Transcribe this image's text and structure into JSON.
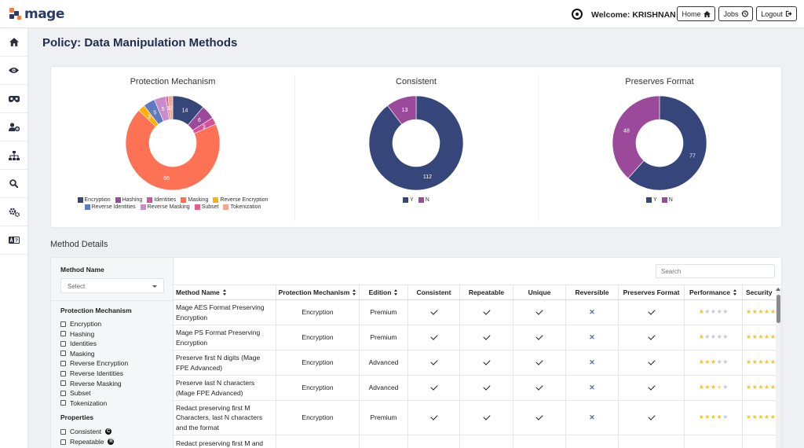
{
  "header": {
    "logo_text": "mage",
    "welcome": "Welcome: KRISHNAN",
    "buttons": [
      {
        "label": "Home",
        "icon": "home-icon"
      },
      {
        "label": "Jobs",
        "icon": "history-icon"
      },
      {
        "label": "Logout",
        "icon": "logout-icon"
      }
    ]
  },
  "sidebar": {
    "items": [
      {
        "icon": "home-icon"
      },
      {
        "icon": "eye-icon"
      },
      {
        "icon": "mask-icon"
      },
      {
        "icon": "user-gear-icon"
      },
      {
        "icon": "sitemap-icon"
      },
      {
        "icon": "search-icon"
      },
      {
        "icon": "gears-icon"
      },
      {
        "icon": "language-icon"
      }
    ]
  },
  "page": {
    "title": "Policy: Data Manipulation Methods",
    "section_title": "Method Details"
  },
  "chart_data": [
    {
      "type": "pie",
      "title": "Protection Mechanism",
      "categories": [
        "Encryption",
        "Hashing",
        "Identities",
        "Masking",
        "Reverse Encryption",
        "Reverse Identities",
        "Reverse Masking",
        "Subset",
        "Tokenization"
      ],
      "values": [
        14,
        6,
        3,
        86,
        3,
        5,
        5,
        1,
        2
      ],
      "data_labels": [
        "14",
        "6",
        "3",
        "86",
        "3",
        "5",
        "5",
        "1",
        "2"
      ],
      "colors": [
        "#36467a",
        "#9b4a9b",
        "#d84e9a",
        "#fd7255",
        "#ffb300",
        "#5d7ac2",
        "#c98bc9",
        "#e85d8c",
        "#f4a68f"
      ],
      "legend": "bottom"
    },
    {
      "type": "pie",
      "title": "Consistent",
      "categories": [
        "Y",
        "N"
      ],
      "values": [
        112,
        13
      ],
      "colors": [
        "#36467a",
        "#9b4a9b"
      ],
      "legend": "bottom"
    },
    {
      "type": "pie",
      "title": "Preserves Format",
      "categories": [
        "Y",
        "N"
      ],
      "values": [
        77,
        48
      ],
      "colors": [
        "#36467a",
        "#9b4a9b"
      ],
      "legend": "bottom"
    }
  ],
  "filters": {
    "method_name_label": "Method Name",
    "select_placeholder": "Select",
    "protection_label": "Protection Mechanism",
    "protection_options": [
      "Encryption",
      "Hashing",
      "Identities",
      "Masking",
      "Reverse Encryption",
      "Reverse Identities",
      "Reverse Masking",
      "Subset",
      "Tokenization"
    ],
    "properties_label": "Properties",
    "property_options": [
      {
        "label": "Consistent",
        "badge": "C"
      },
      {
        "label": "Repeatable",
        "badge": "R"
      }
    ]
  },
  "table": {
    "search_placeholder": "Search",
    "columns": [
      "Method Name",
      "Protection Mechanism",
      "Edition",
      "Consistent",
      "Repeatable",
      "Unique",
      "Reversible",
      "Preserves Format",
      "Performance",
      "Security"
    ],
    "rows": [
      {
        "name": "Mage AES Format Preserving Encryption",
        "mechanism": "Encryption",
        "edition": "Premium",
        "consistent": true,
        "repeatable": true,
        "unique": true,
        "reversible": false,
        "preserves_format": true,
        "performance": 1,
        "security": 5
      },
      {
        "name": "Mage PS Format Preserving Encryption",
        "mechanism": "Encryption",
        "edition": "Premium",
        "consistent": true,
        "repeatable": true,
        "unique": true,
        "reversible": false,
        "preserves_format": true,
        "performance": 1,
        "security": 5
      },
      {
        "name": "Preserve first N digits (Mage FPE Advanced)",
        "mechanism": "Encryption",
        "edition": "Advanced",
        "consistent": true,
        "repeatable": true,
        "unique": true,
        "reversible": false,
        "preserves_format": true,
        "performance": 3,
        "security": 5
      },
      {
        "name": "Preserve last N characters (Mage FPE Advanced)",
        "mechanism": "Encryption",
        "edition": "Advanced",
        "consistent": true,
        "repeatable": true,
        "unique": true,
        "reversible": false,
        "preserves_format": true,
        "performance": 3.5,
        "security": 5
      },
      {
        "name": "Redact preserving first M Characters, last N characters and the format",
        "mechanism": "Encryption",
        "edition": "Premium",
        "consistent": true,
        "repeatable": true,
        "unique": true,
        "reversible": false,
        "preserves_format": true,
        "performance": 4,
        "security": 5
      },
      {
        "name": "Redact preserving first M and",
        "mechanism": "",
        "edition": "",
        "consistent": null,
        "repeatable": null,
        "unique": null,
        "reversible": null,
        "preserves_format": null,
        "performance": null,
        "security": null
      }
    ]
  }
}
